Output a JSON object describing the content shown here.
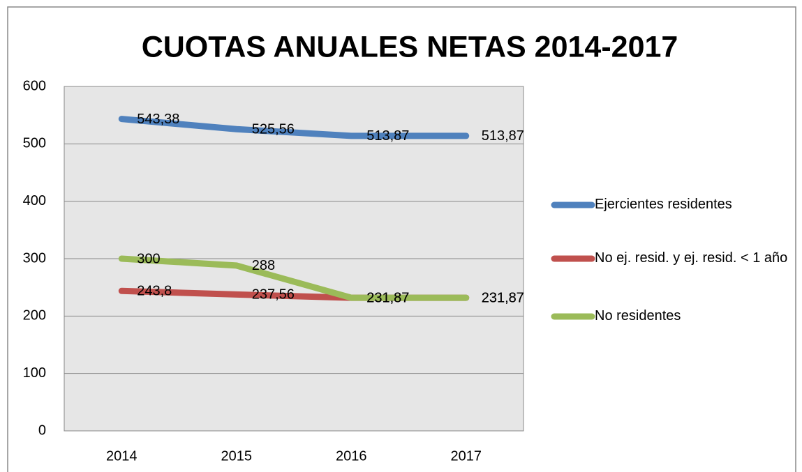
{
  "chart_data": {
    "type": "line",
    "title": "CUOTAS ANUALES NETAS 2014-2017",
    "categories": [
      "2014",
      "2015",
      "2016",
      "2017"
    ],
    "series": [
      {
        "name": "Ejercientes residentes",
        "color": "#4f81bd",
        "values": [
          543.38,
          525.56,
          513.87,
          513.87
        ],
        "value_labels": [
          "543,38",
          "525,56",
          "513,87",
          "513,87"
        ]
      },
      {
        "name": "No ej. resid. y ej. resid. < 1 año",
        "color": "#c0504d",
        "values": [
          243.8,
          237.56,
          231.87,
          231.87
        ],
        "value_labels": [
          "243,8",
          "237,56",
          "231,87",
          "231,87"
        ]
      },
      {
        "name": "No residentes",
        "color": "#9bbb59",
        "values": [
          300,
          288,
          231.87,
          231.87
        ],
        "value_labels": [
          "300",
          "288",
          "231,87",
          "231,87"
        ]
      }
    ],
    "ylim": [
      0,
      600
    ],
    "yticks": [
      0,
      100,
      200,
      300,
      400,
      500,
      600
    ],
    "grid": true,
    "legend": "right"
  }
}
